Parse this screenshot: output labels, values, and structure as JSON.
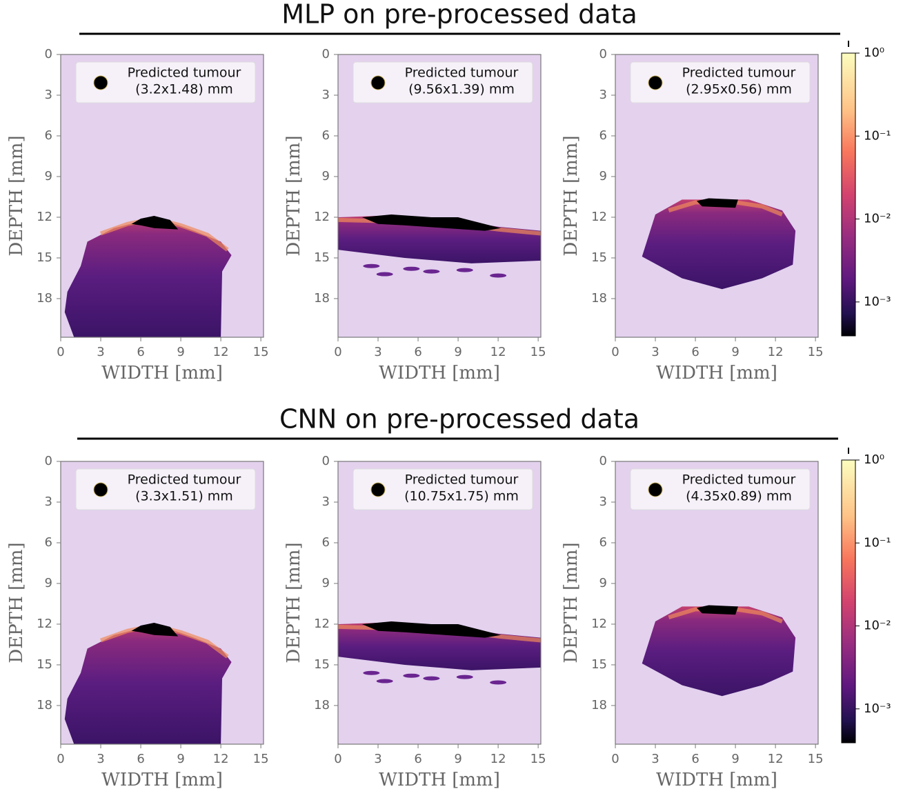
{
  "figure": {
    "titles": [
      "MLP on pre-processed data",
      "CNN on pre-processed data"
    ],
    "colorbars": [
      {
        "type": "colorbar",
        "scale": "log",
        "lim": [
          0.00039,
          1
        ],
        "ticks": [
          {
            "value": 1,
            "label": "10⁰"
          },
          {
            "value": 0.1,
            "label": "10⁻¹"
          },
          {
            "value": 0.01,
            "label": "10⁻²"
          },
          {
            "value": 0.001,
            "label": "10⁻³"
          }
        ]
      },
      {
        "type": "colorbar",
        "scale": "log",
        "lim": [
          0.00039,
          1
        ],
        "ticks": [
          {
            "value": 1,
            "label": "10⁰"
          },
          {
            "value": 0.1,
            "label": "10⁻¹"
          },
          {
            "value": 0.01,
            "label": "10⁻²"
          },
          {
            "value": 0.001,
            "label": "10⁻³"
          }
        ]
      }
    ]
  },
  "chart_data": [
    {
      "type": "heatmap",
      "xlabel": "WIDTH [mm]",
      "ylabel": "DEPTH [mm]",
      "xlim": [
        0,
        15.2
      ],
      "ylim": [
        0,
        20.85
      ],
      "xticks": [
        0,
        3,
        6,
        9,
        12,
        15
      ],
      "yticks": [
        0,
        3,
        6,
        9,
        12,
        15,
        18
      ],
      "legend": [
        "Predicted tumour",
        "(3.2x1.48) mm"
      ]
    },
    {
      "type": "heatmap",
      "xlabel": "WIDTH [mm]",
      "ylabel": "DEPTH [mm]",
      "xlim": [
        0,
        15.2
      ],
      "ylim": [
        0,
        20.85
      ],
      "xticks": [
        0,
        3,
        6,
        9,
        12,
        15
      ],
      "yticks": [
        0,
        3,
        6,
        9,
        12,
        15,
        18
      ],
      "legend": [
        "Predicted tumour",
        "(9.56x1.39) mm"
      ]
    },
    {
      "type": "heatmap",
      "xlabel": "WIDTH [mm]",
      "ylabel": "DEPTH [mm]",
      "xlim": [
        0,
        15.2
      ],
      "ylim": [
        0,
        20.85
      ],
      "xticks": [
        0,
        3,
        6,
        9,
        12,
        15
      ],
      "yticks": [
        0,
        3,
        6,
        9,
        12,
        15,
        18
      ],
      "legend": [
        "Predicted tumour",
        "(2.95x0.56) mm"
      ]
    },
    {
      "type": "heatmap",
      "xlabel": "WIDTH [mm]",
      "ylabel": "DEPTH [mm]",
      "xlim": [
        0,
        15.2
      ],
      "ylim": [
        0,
        20.85
      ],
      "xticks": [
        0,
        3,
        6,
        9,
        12,
        15
      ],
      "yticks": [
        0,
        3,
        6,
        9,
        12,
        15,
        18
      ],
      "legend": [
        "Predicted tumour",
        "(3.3x1.51) mm"
      ]
    },
    {
      "type": "heatmap",
      "xlabel": "WIDTH [mm]",
      "ylabel": "DEPTH [mm]",
      "xlim": [
        0,
        15.2
      ],
      "ylim": [
        0,
        20.85
      ],
      "xticks": [
        0,
        3,
        6,
        9,
        12,
        15
      ],
      "yticks": [
        0,
        3,
        6,
        9,
        12,
        15,
        18
      ],
      "legend": [
        "Predicted tumour",
        "(10.75x1.75) mm"
      ]
    },
    {
      "type": "heatmap",
      "xlabel": "WIDTH [mm]",
      "ylabel": "DEPTH [mm]",
      "xlim": [
        0,
        15.2
      ],
      "ylim": [
        0,
        20.85
      ],
      "xticks": [
        0,
        3,
        6,
        9,
        12,
        15
      ],
      "yticks": [
        0,
        3,
        6,
        9,
        12,
        15,
        18
      ],
      "legend": [
        "Predicted tumour",
        "(4.35x0.89) mm"
      ]
    }
  ]
}
